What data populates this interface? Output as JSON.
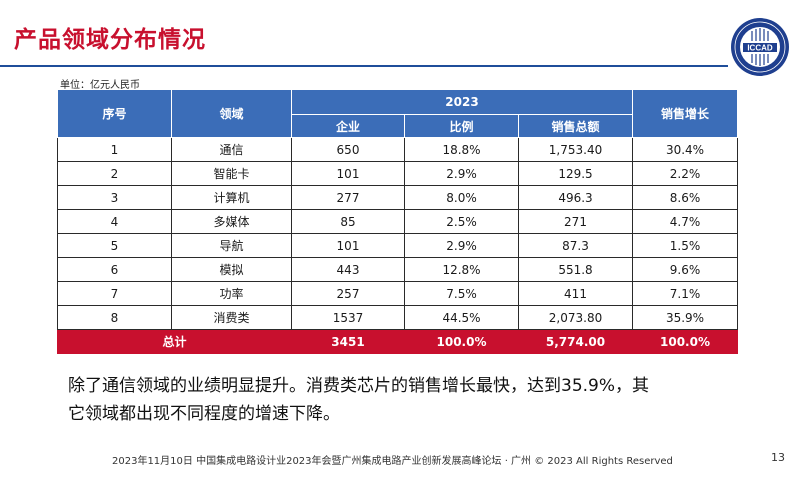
{
  "title": "产品领域分布情况",
  "unit_note": "单位：亿元人民币",
  "logo": {
    "text": "ICCAD",
    "subtext": "中国集成电路设计业年会"
  },
  "table": {
    "headers": {
      "no": "序号",
      "field": "领域",
      "year": "2023",
      "companies": "企业",
      "ratio": "比例",
      "sales": "销售总额",
      "growth": "销售增长"
    },
    "rows": [
      {
        "no": "1",
        "field": "通信",
        "companies": "650",
        "ratio": "18.8%",
        "sales": "1,753.40",
        "growth": "30.4%"
      },
      {
        "no": "2",
        "field": "智能卡",
        "companies": "101",
        "ratio": "2.9%",
        "sales": "129.5",
        "growth": "2.2%"
      },
      {
        "no": "3",
        "field": "计算机",
        "companies": "277",
        "ratio": "8.0%",
        "sales": "496.3",
        "growth": "8.6%"
      },
      {
        "no": "4",
        "field": "多媒体",
        "companies": "85",
        "ratio": "2.5%",
        "sales": "271",
        "growth": "4.7%"
      },
      {
        "no": "5",
        "field": "导航",
        "companies": "101",
        "ratio": "2.9%",
        "sales": "87.3",
        "growth": "1.5%"
      },
      {
        "no": "6",
        "field": "模拟",
        "companies": "443",
        "ratio": "12.8%",
        "sales": "551.8",
        "growth": "9.6%"
      },
      {
        "no": "7",
        "field": "功率",
        "companies": "257",
        "ratio": "7.5%",
        "sales": "411",
        "growth": "7.1%"
      },
      {
        "no": "8",
        "field": "消费类",
        "companies": "1537",
        "ratio": "44.5%",
        "sales": "2,073.80",
        "growth": "35.9%"
      }
    ],
    "total": {
      "label": "总计",
      "companies": "3451",
      "ratio": "100.0%",
      "sales": "5,774.00",
      "growth": "100.0%"
    }
  },
  "summary_line1": "除了通信领域的业绩明显提升。消费类芯片的销售增长最快，达到35.9%，其",
  "summary_line2": "它领域都出现不同程度的增速下降。",
  "footer": {
    "text": "2023年11月10日  中国集成电路设计业2023年会暨广州集成电路产业创新发展高峰论坛 · 广州 © 2023 All Rights Reserved",
    "page": "13"
  },
  "colors": {
    "title": "#c8102e",
    "header_bg": "#3b6db8",
    "total_bg": "#c8102e",
    "rule": "#1f4e9a"
  }
}
